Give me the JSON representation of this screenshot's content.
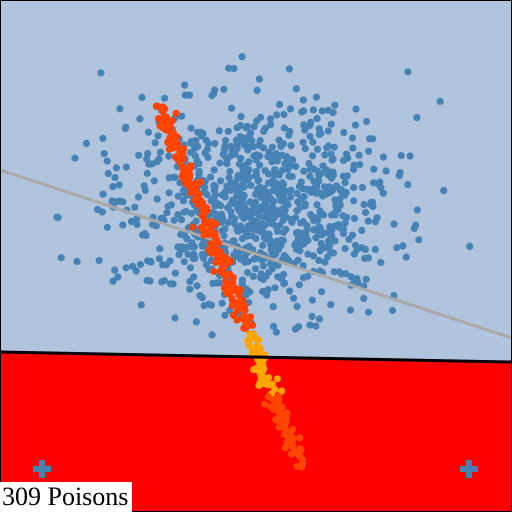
{
  "caption": "309 Poisons",
  "colors": {
    "upper_region": "#b0c4de",
    "lower_region": "#ff0000",
    "clean_points": "#4682b4",
    "poison_points": "#ff4500",
    "poison_points_near_boundary": "#ffa500",
    "decision_boundary": "#000000",
    "reference_boundary": "#a9a9a9",
    "cross_markers": "#4682b4"
  },
  "icons": [
    "cross-marker-icon",
    "cross-marker-icon"
  ],
  "poison_count": 309
}
